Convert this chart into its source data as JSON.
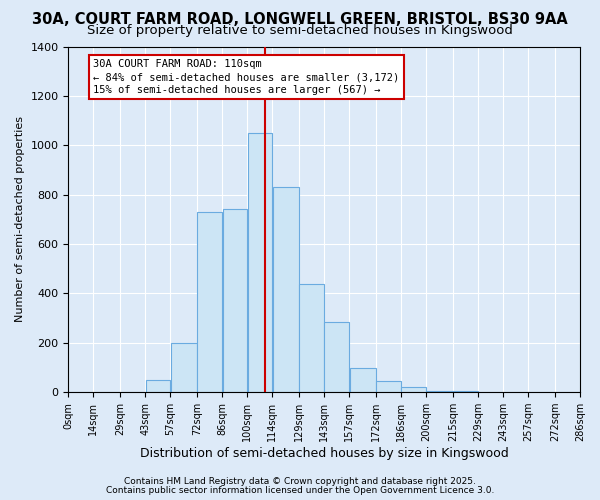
{
  "title": "30A, COURT FARM ROAD, LONGWELL GREEN, BRISTOL, BS30 9AA",
  "subtitle": "Size of property relative to semi-detached houses in Kingswood",
  "xlabel": "Distribution of semi-detached houses by size in Kingswood",
  "ylabel": "Number of semi-detached properties",
  "annotation_title": "30A COURT FARM ROAD: 110sqm",
  "annotation_line1": "← 84% of semi-detached houses are smaller (3,172)",
  "annotation_line2": "15% of semi-detached houses are larger (567) →",
  "footnote1": "Contains HM Land Registry data © Crown copyright and database right 2025.",
  "footnote2": "Contains public sector information licensed under the Open Government Licence 3.0.",
  "property_size": 110,
  "bar_edges": [
    0,
    14,
    29,
    43,
    57,
    72,
    86,
    100,
    114,
    129,
    143,
    157,
    172,
    186,
    200,
    215,
    229,
    243,
    257,
    272,
    286
  ],
  "bar_heights": [
    0,
    0,
    0,
    50,
    200,
    730,
    740,
    1050,
    830,
    440,
    285,
    100,
    45,
    20,
    5,
    3,
    2,
    1,
    0,
    0
  ],
  "bar_color": "#cce5f5",
  "bar_edge_color": "#6aabe0",
  "vline_color": "#cc0000",
  "box_edge_color": "#cc0000",
  "background_color": "#ddeaf8",
  "grid_color": "#ffffff",
  "ylim": [
    0,
    1400
  ],
  "title_fontsize": 10.5,
  "subtitle_fontsize": 9.5
}
